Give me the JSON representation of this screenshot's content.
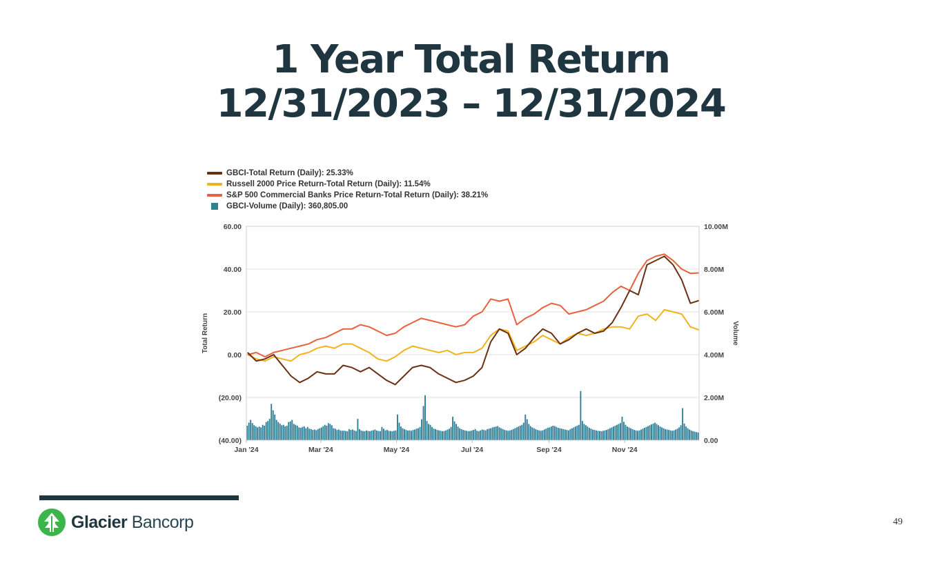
{
  "slide": {
    "title_line1": "1 Year Total Return",
    "title_line2": "12/31/2023 – 12/31/2024",
    "page_number": "49",
    "logo": {
      "name_bold": "Glacier",
      "name_light": "Bancorp",
      "brand_color": "#3bb54a"
    }
  },
  "chart_data": {
    "type": "line",
    "title": "",
    "ylabel": "Total Return",
    "y2label": "Volume",
    "ylim": [
      -40,
      60
    ],
    "y2lim": [
      0,
      10000000
    ],
    "yticks": [
      "60.00",
      "40.00",
      "20.00",
      "0.00",
      "(20.00)",
      "(40.00)"
    ],
    "y2ticks": [
      "10.00M",
      "8.00M",
      "6.00M",
      "4.00M",
      "2.00M",
      "0.00"
    ],
    "xticks": [
      "Jan '24",
      "Mar '24",
      "May '24",
      "Jul '24",
      "Sep '24",
      "Nov '24"
    ],
    "grid": true,
    "legend_position": "top-left",
    "series": [
      {
        "name": "GBCI-Total Return (Daily): 25.33%",
        "color": "#6b2f12",
        "kind": "line",
        "x": [
          "2024-01-02",
          "2024-01-09",
          "2024-01-16",
          "2024-01-23",
          "2024-01-30",
          "2024-02-06",
          "2024-02-13",
          "2024-02-20",
          "2024-02-27",
          "2024-03-05",
          "2024-03-12",
          "2024-03-19",
          "2024-03-26",
          "2024-04-02",
          "2024-04-09",
          "2024-04-16",
          "2024-04-23",
          "2024-04-30",
          "2024-05-07",
          "2024-05-14",
          "2024-05-21",
          "2024-05-28",
          "2024-06-04",
          "2024-06-11",
          "2024-06-18",
          "2024-06-25",
          "2024-07-02",
          "2024-07-09",
          "2024-07-16",
          "2024-07-23",
          "2024-07-30",
          "2024-08-06",
          "2024-08-13",
          "2024-08-20",
          "2024-08-27",
          "2024-09-03",
          "2024-09-10",
          "2024-09-17",
          "2024-09-24",
          "2024-10-01",
          "2024-10-08",
          "2024-10-15",
          "2024-10-22",
          "2024-10-29",
          "2024-11-05",
          "2024-11-12",
          "2024-11-19",
          "2024-11-26",
          "2024-12-03",
          "2024-12-10",
          "2024-12-17",
          "2024-12-24",
          "2024-12-31"
        ],
        "values": [
          1,
          -3,
          -2,
          0,
          -5,
          -10,
          -13,
          -11,
          -8,
          -9,
          -9,
          -5,
          -6,
          -8,
          -6,
          -9,
          -12,
          -14,
          -10,
          -6,
          -5,
          -6,
          -9,
          -11,
          -13,
          -12,
          -10,
          -6,
          6,
          12,
          10,
          0,
          3,
          8,
          12,
          10,
          5,
          7,
          10,
          12,
          10,
          11,
          15,
          22,
          30,
          28,
          42,
          44,
          46,
          42,
          35,
          24,
          25.33
        ]
      },
      {
        "name": "Russell 2000 Price Return-Total Return (Daily): 11.54%",
        "color": "#f2b21c",
        "kind": "line",
        "x": [
          "2024-01-02",
          "2024-01-09",
          "2024-01-16",
          "2024-01-23",
          "2024-01-30",
          "2024-02-06",
          "2024-02-13",
          "2024-02-20",
          "2024-02-27",
          "2024-03-05",
          "2024-03-12",
          "2024-03-19",
          "2024-03-26",
          "2024-04-02",
          "2024-04-09",
          "2024-04-16",
          "2024-04-23",
          "2024-04-30",
          "2024-05-07",
          "2024-05-14",
          "2024-05-21",
          "2024-05-28",
          "2024-06-04",
          "2024-06-11",
          "2024-06-18",
          "2024-06-25",
          "2024-07-02",
          "2024-07-09",
          "2024-07-16",
          "2024-07-23",
          "2024-07-30",
          "2024-08-06",
          "2024-08-13",
          "2024-08-20",
          "2024-08-27",
          "2024-09-03",
          "2024-09-10",
          "2024-09-17",
          "2024-09-24",
          "2024-10-01",
          "2024-10-08",
          "2024-10-15",
          "2024-10-22",
          "2024-10-29",
          "2024-11-05",
          "2024-11-12",
          "2024-11-19",
          "2024-11-26",
          "2024-12-03",
          "2024-12-10",
          "2024-12-17",
          "2024-12-24",
          "2024-12-31"
        ],
        "values": [
          0,
          -2,
          -3,
          -1,
          -2,
          -3,
          0,
          1,
          3,
          4,
          3,
          5,
          5,
          3,
          1,
          -2,
          -3,
          -1,
          2,
          4,
          3,
          2,
          1,
          2,
          0,
          1,
          1,
          3,
          9,
          12,
          11,
          2,
          4,
          6,
          9,
          7,
          5,
          8,
          10,
          9,
          10,
          12,
          13,
          13,
          12,
          18,
          19,
          16,
          21,
          20,
          19,
          13,
          11.54
        ]
      },
      {
        "name": "S&P 500 Commercial Banks Price Return-Total Return (Daily): 38.21%",
        "color": "#e8603c",
        "kind": "line",
        "x": [
          "2024-01-02",
          "2024-01-09",
          "2024-01-16",
          "2024-01-23",
          "2024-01-30",
          "2024-02-06",
          "2024-02-13",
          "2024-02-20",
          "2024-02-27",
          "2024-03-05",
          "2024-03-12",
          "2024-03-19",
          "2024-03-26",
          "2024-04-02",
          "2024-04-09",
          "2024-04-16",
          "2024-04-23",
          "2024-04-30",
          "2024-05-07",
          "2024-05-14",
          "2024-05-21",
          "2024-05-28",
          "2024-06-04",
          "2024-06-11",
          "2024-06-18",
          "2024-06-25",
          "2024-07-02",
          "2024-07-09",
          "2024-07-16",
          "2024-07-23",
          "2024-07-30",
          "2024-08-06",
          "2024-08-13",
          "2024-08-20",
          "2024-08-27",
          "2024-09-03",
          "2024-09-10",
          "2024-09-17",
          "2024-09-24",
          "2024-10-01",
          "2024-10-08",
          "2024-10-15",
          "2024-10-22",
          "2024-10-29",
          "2024-11-05",
          "2024-11-12",
          "2024-11-19",
          "2024-11-26",
          "2024-12-03",
          "2024-12-10",
          "2024-12-17",
          "2024-12-24",
          "2024-12-31"
        ],
        "values": [
          0,
          1,
          -1,
          1,
          2,
          3,
          4,
          5,
          7,
          8,
          10,
          12,
          12,
          14,
          13,
          11,
          9,
          10,
          13,
          15,
          17,
          16,
          15,
          14,
          13,
          14,
          18,
          20,
          26,
          25,
          26,
          14,
          17,
          19,
          22,
          24,
          23,
          19,
          20,
          21,
          23,
          25,
          29,
          32,
          30,
          38,
          44,
          46,
          47,
          44,
          40,
          38,
          38.21
        ]
      },
      {
        "name": "GBCI-Volume (Daily): 360,805.00",
        "color": "#2f7f96",
        "kind": "bar",
        "axis": "right",
        "values": [
          680,
          820,
          950,
          800,
          700,
          650,
          600,
          640,
          600,
          720,
          680,
          850,
          900,
          1000,
          1700,
          1400,
          1200,
          950,
          850,
          780,
          700,
          720,
          650,
          680,
          850,
          880,
          950,
          760,
          720,
          680,
          600,
          580,
          620,
          650,
          560,
          620,
          540,
          520,
          480,
          500,
          470,
          520,
          560,
          600,
          660,
          720,
          680,
          800,
          760,
          700,
          560,
          540,
          480,
          500,
          460,
          440,
          450,
          430,
          420,
          520,
          480,
          500,
          460,
          430,
          1000,
          520,
          460,
          430,
          420,
          460,
          430,
          420,
          450,
          470,
          500,
          450,
          430,
          420,
          620,
          540,
          460,
          480,
          440,
          430,
          420,
          440,
          460,
          1200,
          820,
          640,
          560,
          520,
          480,
          450,
          460,
          440,
          480,
          500,
          540,
          560,
          620,
          980,
          1600,
          2100,
          900,
          760,
          720,
          620,
          540,
          520,
          480,
          460,
          440,
          420,
          430,
          460,
          500,
          540,
          620,
          1100,
          880,
          760,
          640,
          560,
          520,
          480,
          460,
          440,
          420,
          430,
          460,
          480,
          520,
          440,
          420,
          460,
          500,
          480,
          460,
          520,
          540,
          560,
          600,
          620,
          640,
          660,
          600,
          560,
          520,
          480,
          460,
          440,
          460,
          480,
          520,
          560,
          600,
          640,
          680,
          720,
          820,
          1200,
          980,
          760,
          660,
          600,
          560,
          520,
          480,
          460,
          440,
          460,
          500,
          540,
          580,
          600,
          640,
          680,
          660,
          620,
          580,
          560,
          540,
          520,
          500,
          480,
          460,
          520,
          560,
          600,
          640,
          680,
          720,
          2300,
          900,
          760,
          700,
          640,
          580,
          540,
          500,
          480,
          460,
          440,
          430,
          420,
          440,
          460,
          480,
          520,
          560,
          600,
          640,
          680,
          720,
          760,
          800,
          1100,
          860,
          720,
          640,
          600,
          560,
          520,
          480,
          460,
          440,
          460,
          500,
          540,
          580,
          620,
          660,
          700,
          740,
          780,
          820,
          760,
          700,
          640,
          600,
          560,
          520,
          500,
          480,
          460,
          440,
          460,
          500,
          540,
          600,
          700,
          1500,
          780,
          640,
          560,
          500,
          460,
          420,
          400,
          380,
          360
        ]
      }
    ]
  }
}
